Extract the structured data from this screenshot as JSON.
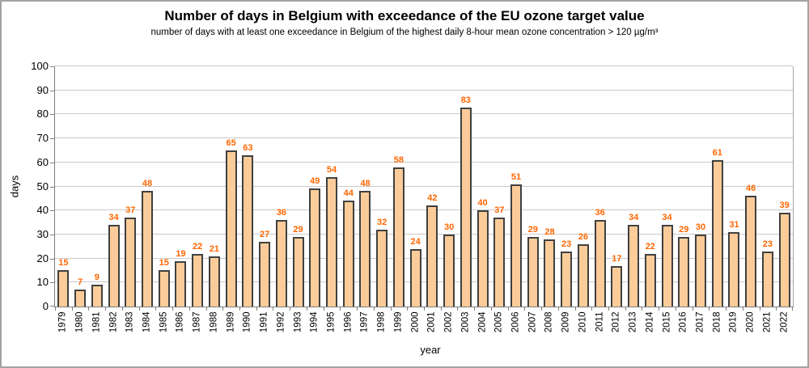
{
  "chart_data": {
    "type": "bar",
    "title": "Number of days in Belgium with exceedance of the EU ozone target value",
    "subtitle": "number of days with at least one exceedance in Belgium of the highest daily 8-hour mean ozone concentration > 120 µg/m³",
    "xlabel": "year",
    "ylabel": "days",
    "ylim": [
      0,
      100
    ],
    "ytick_step": 10,
    "grid": true,
    "legend": "none",
    "categories": [
      "1979",
      "1980",
      "1981",
      "1982",
      "1983",
      "1984",
      "1985",
      "1986",
      "1987",
      "1988",
      "1989",
      "1990",
      "1991",
      "1992",
      "1993",
      "1994",
      "1995",
      "1996",
      "1997",
      "1998",
      "1999",
      "2000",
      "2001",
      "2002",
      "2003",
      "2004",
      "2005",
      "2006",
      "2007",
      "2008",
      "2009",
      "2010",
      "2011",
      "2012",
      "2013",
      "2014",
      "2015",
      "2016",
      "2017",
      "2018",
      "2019",
      "2020",
      "2021",
      "2022"
    ],
    "values": [
      15,
      7,
      9,
      34,
      37,
      48,
      15,
      19,
      22,
      21,
      65,
      63,
      27,
      36,
      29,
      49,
      54,
      44,
      48,
      32,
      58,
      24,
      42,
      30,
      83,
      40,
      37,
      51,
      29,
      28,
      23,
      26,
      36,
      17,
      34,
      22,
      34,
      29,
      30,
      61,
      31,
      46,
      23,
      39
    ],
    "colors": {
      "bar_fill": "#fbcc99",
      "bar_border": "#404040",
      "value_label": "#ff6600",
      "gridline": "#c9c9c9",
      "axis": "#7f7f7f",
      "frame_border": "#a3a3a3",
      "background": "#ffffff"
    }
  }
}
